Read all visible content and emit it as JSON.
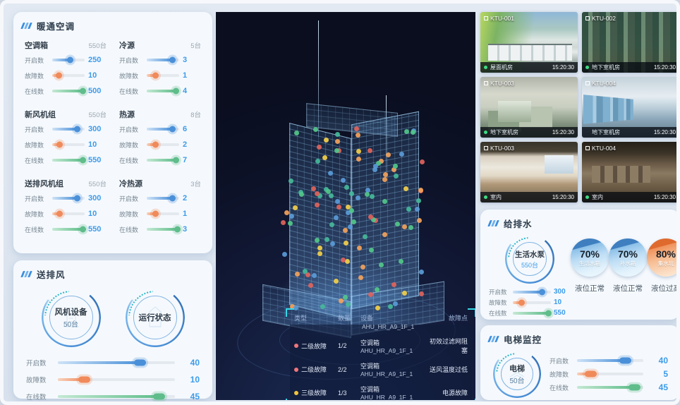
{
  "colors": {
    "open": "#4a90d9",
    "fault": "#f08a5a",
    "online": "#5fbd8b",
    "value_text": "#3d9be9",
    "accent_cyan": "#35d8e8",
    "live_green": "#3ddc84",
    "dot_palette": [
      "#52c78a",
      "#45b89a",
      "#5a9bd8",
      "#f2a35c",
      "#e0645c",
      "#f2cf4b"
    ]
  },
  "hvac": {
    "title": "暖通空调",
    "groups": [
      {
        "name": "空调箱",
        "total": "550台",
        "rows": [
          {
            "label": "开启数",
            "value": "250",
            "pct": 55
          },
          {
            "label": "故障数",
            "value": "10",
            "pct": 20
          },
          {
            "label": "在线数",
            "value": "500",
            "pct": 93
          }
        ]
      },
      {
        "name": "冷源",
        "total": "5台",
        "rows": [
          {
            "label": "开启数",
            "value": "3",
            "pct": 78
          },
          {
            "label": "故障数",
            "value": "1",
            "pct": 25
          },
          {
            "label": "在线数",
            "value": "4",
            "pct": 90
          }
        ]
      },
      {
        "name": "新风机组",
        "total": "550台",
        "rows": [
          {
            "label": "开启数",
            "value": "300",
            "pct": 75
          },
          {
            "label": "故障数",
            "value": "10",
            "pct": 22
          },
          {
            "label": "在线数",
            "value": "550",
            "pct": 93
          }
        ]
      },
      {
        "name": "热源",
        "total": "8台",
        "rows": [
          {
            "label": "开启数",
            "value": "6",
            "pct": 78
          },
          {
            "label": "故障数",
            "value": "2",
            "pct": 25
          },
          {
            "label": "在线数",
            "value": "7",
            "pct": 90
          }
        ]
      },
      {
        "name": "送排风机组",
        "total": "550台",
        "rows": [
          {
            "label": "开启数",
            "value": "300",
            "pct": 75
          },
          {
            "label": "故障数",
            "value": "10",
            "pct": 22
          },
          {
            "label": "在线数",
            "value": "550",
            "pct": 93
          }
        ]
      },
      {
        "name": "冷热源",
        "total": "3台",
        "rows": [
          {
            "label": "开启数",
            "value": "2",
            "pct": 78
          },
          {
            "label": "故障数",
            "value": "1",
            "pct": 25
          },
          {
            "label": "在线数",
            "value": "3",
            "pct": 93
          }
        ]
      }
    ]
  },
  "fans": {
    "title": "送排风",
    "gauge1": {
      "label": "风机设备",
      "sub": "50台"
    },
    "gauge2": {
      "label": "运行状态"
    },
    "rows": [
      {
        "label": "开启数",
        "value": "40",
        "pct": 70
      },
      {
        "label": "故障数",
        "value": "10",
        "pct": 22
      },
      {
        "label": "在线数",
        "value": "45",
        "pct": 86
      }
    ]
  },
  "monitor": {
    "table": {
      "headers": [
        "类型",
        "数量",
        "设备",
        "故障点"
      ],
      "partial_device": "AHU_HR_A9_1F_1",
      "rows": [
        {
          "level": "二级故障",
          "count": "1/2",
          "device_type": "空调箱",
          "device_id": "AHU_HR_A9_1F_1",
          "fault": "初效过滤网阻塞",
          "dot_color": "#ef767a"
        },
        {
          "level": "二级故障",
          "count": "2/2",
          "device_type": "空调箱",
          "device_id": "AHU_HR_A9_1F_1",
          "fault": "送风温度过低",
          "dot_color": "#ef767a"
        },
        {
          "level": "三级故障",
          "count": "1/3",
          "device_type": "空调箱",
          "device_id": "AHU_HR_A9_1F_1",
          "fault": "电源故障",
          "dot_color": "#f0c33c"
        }
      ]
    }
  },
  "cameras": [
    {
      "id": "KTU-001",
      "location": "屋面机房",
      "time": "15:20:30",
      "live": true
    },
    {
      "id": "KTU-002",
      "location": "地下室机房",
      "time": "15:20:30",
      "live": true
    },
    {
      "id": "KTU-003",
      "location": "地下室机房",
      "time": "15:20:30",
      "live": true
    },
    {
      "id": "KTU-004",
      "location": "地下室机房",
      "time": "15:20:30",
      "live": false
    },
    {
      "id": "KTU-003",
      "location": "室内",
      "time": "15:20:30",
      "live": true
    },
    {
      "id": "KTU-004",
      "location": "室内",
      "time": "15:20:30",
      "live": true
    }
  ],
  "water": {
    "title": "给排水",
    "gauge": {
      "label": "生活水泵",
      "sub": "550台"
    },
    "rows": [
      {
        "label": "开启数",
        "value": "300",
        "pct": 75
      },
      {
        "label": "故障数",
        "value": "10",
        "pct": 22
      },
      {
        "label": "在线数",
        "value": "550",
        "pct": 92
      }
    ],
    "tanks": [
      {
        "pct": "70%",
        "name": "生活水箱",
        "status": "液位正常",
        "theme": "blue"
      },
      {
        "pct": "70%",
        "name": "补水箱",
        "status": "液位正常",
        "theme": "blue"
      },
      {
        "pct": "80%",
        "name": "集水坑",
        "status": "液位过高",
        "theme": "orange"
      }
    ]
  },
  "elevator": {
    "title": "电梯监控",
    "gauge": {
      "label": "电梯",
      "sub": "50台"
    },
    "rows": [
      {
        "label": "开启数",
        "value": "40",
        "pct": 72
      },
      {
        "label": "故障数",
        "value": "5",
        "pct": 20
      },
      {
        "label": "在线数",
        "value": "45",
        "pct": 86
      }
    ]
  }
}
